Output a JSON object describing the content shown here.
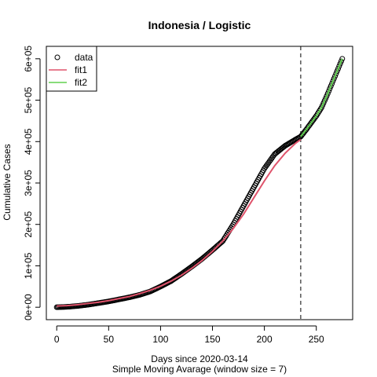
{
  "chart_data": {
    "type": "scatter",
    "title": "Indonesia / Logistic",
    "xlabel": "Days since 2020-03-14",
    "xlabel_sub": "Simple Moving Avarage (window size = 7)",
    "ylabel": "Cumulative Cases",
    "xlim": [
      -10,
      285
    ],
    "ylim": [
      -30000,
      630000
    ],
    "x_ticks": [
      0,
      50,
      100,
      150,
      200,
      250
    ],
    "x_tick_labels": [
      "0",
      "50",
      "100",
      "150",
      "200",
      "250"
    ],
    "y_ticks": [
      0,
      100000,
      200000,
      300000,
      400000,
      500000,
      600000
    ],
    "y_tick_labels": [
      "0e+00",
      "1e+05",
      "2e+05",
      "3e+05",
      "4e+05",
      "5e+05",
      "6e+05"
    ],
    "vline": {
      "x": 235,
      "style": "dashed"
    },
    "legend": {
      "position": "top-left",
      "entries": [
        {
          "label": "data",
          "kind": "point"
        },
        {
          "label": "fit1",
          "kind": "line",
          "color": "#DF536B"
        },
        {
          "label": "fit2",
          "kind": "line",
          "color": "#61D04F"
        }
      ]
    },
    "data_points": {
      "x": [
        0,
        10,
        20,
        30,
        40,
        50,
        60,
        70,
        80,
        90,
        100,
        110,
        120,
        130,
        140,
        150,
        160,
        170,
        180,
        190,
        200,
        210,
        220,
        230,
        235,
        240,
        245,
        250,
        255,
        260,
        265,
        270,
        275
      ],
      "y": [
        0,
        1000,
        3000,
        6000,
        10000,
        14000,
        19000,
        24000,
        30000,
        38000,
        50000,
        63000,
        80000,
        98000,
        117000,
        138000,
        160000,
        200000,
        245000,
        290000,
        335000,
        370000,
        390000,
        405000,
        412000,
        428000,
        445000,
        462000,
        482000,
        510000,
        540000,
        570000,
        600000
      ]
    },
    "series": [
      {
        "name": "fit1",
        "color": "#DF536B",
        "x": [
          0,
          10,
          20,
          30,
          40,
          50,
          60,
          70,
          80,
          90,
          100,
          110,
          120,
          130,
          140,
          150,
          160,
          170,
          180,
          190,
          200,
          210,
          220,
          230,
          235
        ],
        "y": [
          3000,
          4000,
          6000,
          9000,
          12000,
          16000,
          21000,
          26000,
          33000,
          41000,
          51000,
          63000,
          77000,
          94000,
          113000,
          135000,
          160000,
          190000,
          225000,
          265000,
          305000,
          342000,
          372000,
          396000,
          405000
        ]
      },
      {
        "name": "fit2",
        "color": "#61D04F",
        "x": [
          235,
          240,
          245,
          250,
          255,
          260,
          265,
          270,
          275
        ],
        "y": [
          412000,
          428000,
          445000,
          462000,
          482000,
          510000,
          540000,
          570000,
          600000
        ]
      }
    ]
  }
}
